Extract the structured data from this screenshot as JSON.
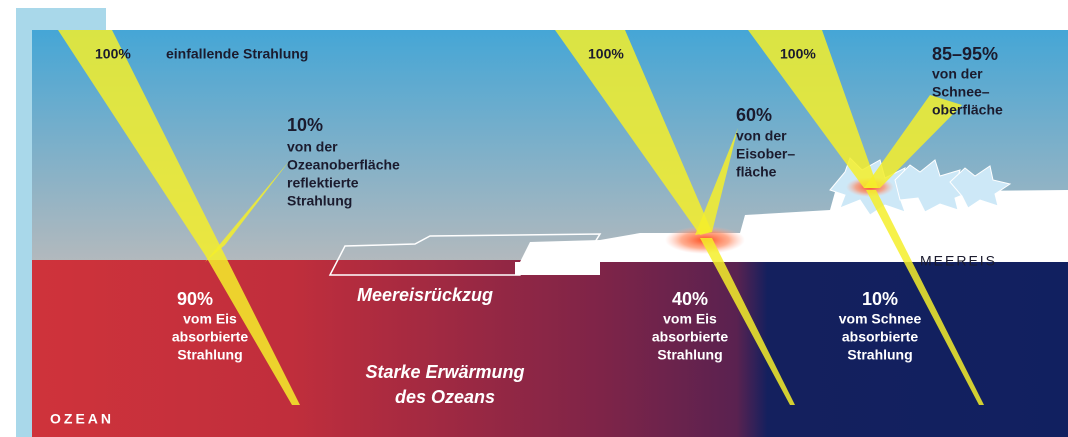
{
  "sky": {
    "incoming_left": {
      "percent": "100%",
      "text": "einfallende Strahlung"
    },
    "ocean_reflection": {
      "percent": "10%",
      "lines": [
        "von der",
        "Ozeanoberfläche",
        "reflektierte",
        "Strahlung"
      ]
    },
    "incoming_middle": {
      "percent": "100%"
    },
    "incoming_right": {
      "percent": "100%"
    },
    "ice_reflection": {
      "percent": "60%",
      "lines": [
        "von der",
        "Eisober–",
        "fläche"
      ]
    },
    "snow_reflection": {
      "percent": "85–95%",
      "lines": [
        "von der",
        "Schnee–",
        "oberfläche"
      ]
    },
    "sea_ice_label": "MEEREIS"
  },
  "ocean": {
    "ocean_absorbed": {
      "percent": "90%",
      "lines": [
        "vom Eis",
        "absorbierte",
        "Strahlung"
      ]
    },
    "retreat_label": "Meereisrückzug",
    "ice_absorbed": {
      "percent": "40%",
      "lines": [
        "vom Eis",
        "absorbierte",
        "Strahlung"
      ]
    },
    "snow_absorbed": {
      "percent": "10%",
      "lines": [
        "vom Schnee",
        "absorbierte",
        "Strahlung"
      ]
    },
    "warming": [
      "Starke Erwärmung",
      "des Ozeans"
    ],
    "ocean_label": "OZEAN"
  }
}
